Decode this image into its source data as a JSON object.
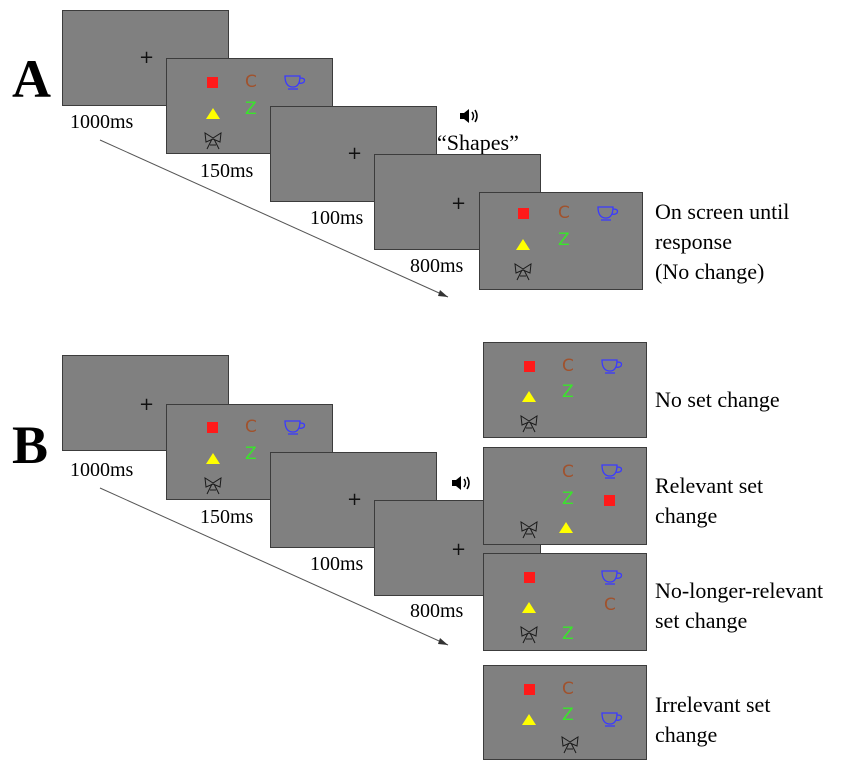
{
  "panel_a": {
    "label": "A",
    "fixation": "+",
    "durations": [
      "1000ms",
      "150ms",
      "100ms",
      "800ms"
    ],
    "audio_cue": "“Shapes”",
    "probe_description": "On screen until response (No change)",
    "probe_lines": [
      "On screen until",
      "response",
      "(No change)"
    ]
  },
  "panel_b": {
    "label": "B",
    "fixation": "+",
    "durations": [
      "1000ms",
      "150ms",
      "100ms",
      "800ms"
    ],
    "conditions": [
      {
        "name": "No set change",
        "lines": [
          "No set change"
        ]
      },
      {
        "name": "Relevant set change",
        "lines": [
          "Relevant set",
          "change"
        ]
      },
      {
        "name": "No-longer-relevant set change",
        "lines": [
          "No-longer-relevant",
          "set change"
        ]
      },
      {
        "name": "Irrelevant set change",
        "lines": [
          "Irrelevant set",
          "change"
        ]
      }
    ]
  },
  "stimuli": {
    "letter_c": "C",
    "letter_z": "Z"
  },
  "colors": {
    "screen": "#808080",
    "square": "#ff1a1a",
    "triangle": "#ffff00",
    "letter_c": "#a0522d",
    "letter_z": "#39e62a",
    "cup": "#3a3aff",
    "bow": "#1a1a1a"
  },
  "icons": [
    "speaker-icon",
    "cup-icon",
    "bow-icon"
  ]
}
